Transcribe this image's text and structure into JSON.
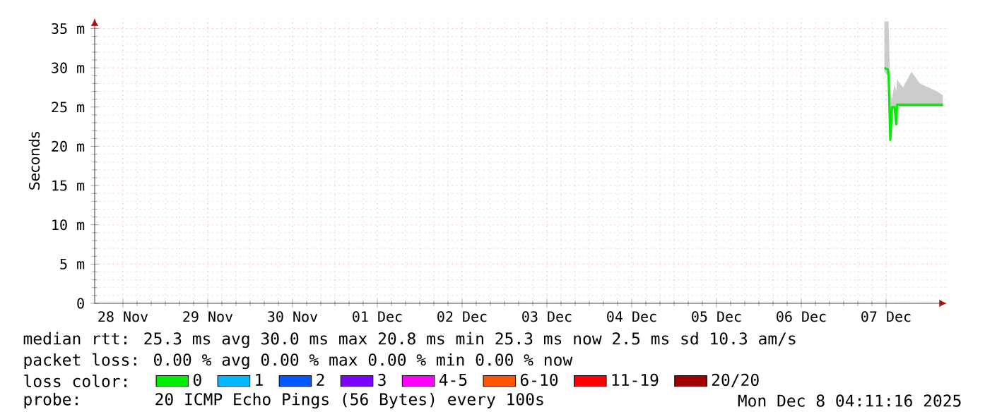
{
  "chart_data": {
    "type": "line",
    "ylabel": "Seconds",
    "legend_title": "loss color:",
    "legend": "bottom",
    "grid": true,
    "marker": "none",
    "xlim": [
      "2025-11-28T04:00",
      "2025-12-08T05:12"
    ],
    "ylim": [
      0,
      36.3
    ],
    "xticks": [
      {
        "value": "2025-11-28T12:00",
        "label": "28 Nov"
      },
      {
        "value": "2025-11-29T12:00",
        "label": "29 Nov"
      },
      {
        "value": "2025-11-30T12:00",
        "label": "30 Nov"
      },
      {
        "value": "2025-12-01T12:00",
        "label": "01 Dec"
      },
      {
        "value": "2025-12-02T12:00",
        "label": "02 Dec"
      },
      {
        "value": "2025-12-03T12:00",
        "label": "03 Dec"
      },
      {
        "value": "2025-12-04T12:00",
        "label": "04 Dec"
      },
      {
        "value": "2025-12-05T12:00",
        "label": "05 Dec"
      },
      {
        "value": "2025-12-06T12:00",
        "label": "06 Dec"
      },
      {
        "value": "2025-12-07T12:00",
        "label": "07 Dec"
      }
    ],
    "yticks": [
      0,
      {
        "value": 5,
        "label": "5 m"
      },
      {
        "value": 10,
        "label": "10 m"
      },
      {
        "value": 15,
        "label": "15 m"
      },
      {
        "value": 20,
        "label": "20 m"
      },
      {
        "value": 25,
        "label": "25 m"
      },
      {
        "value": 30,
        "label": "30 m"
      },
      {
        "value": 35,
        "label": "35 m"
      }
    ],
    "series": [
      {
        "name": "0",
        "color": "#00ee00",
        "x": [
          "2025-12-07T11:31",
          "2025-12-07T12:29",
          "2025-12-07T12:43",
          "2025-12-07T13:12",
          "2025-12-07T13:41",
          "2025-12-07T14:24",
          "2025-12-07T14:53",
          "2025-12-07T15:07",
          "2025-12-07T16:48",
          "2025-12-07T19:12",
          "2025-12-07T21:36",
          "2025-12-08T00:00",
          "2025-12-08T02:24",
          "2025-12-08T04:05"
        ],
        "values": [
          30,
          29.8,
          29,
          20.8,
          25,
          25,
          22.8,
          25.3,
          25.3,
          25.3,
          25.3,
          25.3,
          25.3,
          25.3
        ],
        "lower": [
          29.5,
          29,
          28.5,
          20.8,
          24.5,
          24.8,
          22.8,
          25,
          25,
          25,
          25,
          25,
          25,
          25
        ],
        "upper": [
          35.9,
          35.9,
          35.9,
          27,
          26,
          28,
          27,
          28.5,
          27.5,
          29.5,
          28,
          27.5,
          27,
          26.5
        ]
      },
      {
        "name": "1",
        "color": "#00b8ff"
      },
      {
        "name": "2",
        "color": "#0059ff"
      },
      {
        "name": "3",
        "color": "#7e00ff"
      },
      {
        "name": "4-5",
        "color": "#ff00ff"
      },
      {
        "name": "6-10",
        "color": "#ff5500"
      },
      {
        "name": "11-19",
        "color": "#ff0000"
      },
      {
        "name": "20/20",
        "color": "#a10000"
      }
    ],
    "annotations": [
      "median rtt: 25.3 ms avg 30.0 ms max 20.8 ms min 25.3 ms now 2.5 ms sd 10.3 am/s",
      "packet loss: 0.00 % avg 0.00 % max 0.00 % min 0.00 % now",
      "probe:",
      "20 ICMP Echo Pings (56 Bytes) every 100s",
      "Mon Dec 8 04:11:16 2025"
    ]
  }
}
